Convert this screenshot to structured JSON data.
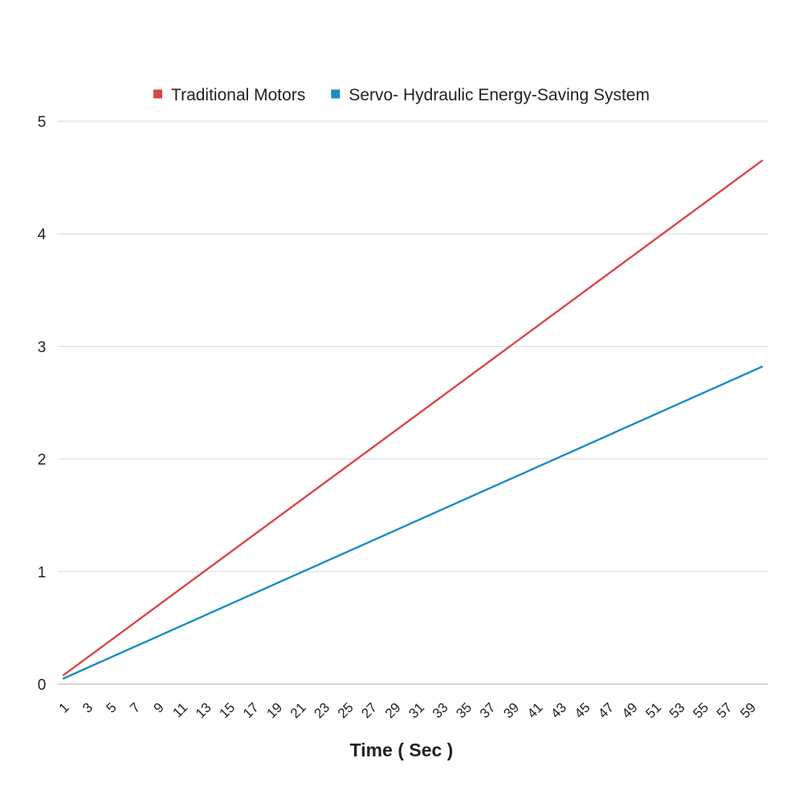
{
  "chart_data": {
    "type": "line",
    "title": "",
    "xlabel": "Time ( Sec )",
    "ylabel": "",
    "ylim": [
      0,
      5
    ],
    "yticks": [
      0,
      1,
      2,
      3,
      4,
      5
    ],
    "xlim": [
      1,
      60
    ],
    "xtick_labels": [
      "1",
      "3",
      "5",
      "7",
      "9",
      "11",
      "13",
      "15",
      "17",
      "19",
      "21",
      "23",
      "25",
      "27",
      "29",
      "31",
      "33",
      "35",
      "37",
      "39",
      "41",
      "43",
      "45",
      "47",
      "49",
      "51",
      "53",
      "55",
      "57",
      "59"
    ],
    "grid": "horizontal",
    "legend_position": "top",
    "x": [
      1,
      60
    ],
    "series": [
      {
        "name": "Traditional Motors",
        "color": "#d9464a",
        "values": [
          0.08,
          4.65
        ]
      },
      {
        "name": "Servo- Hydraulic Energy-Saving System",
        "color": "#1a8dc4",
        "values": [
          0.05,
          2.82
        ]
      }
    ]
  }
}
